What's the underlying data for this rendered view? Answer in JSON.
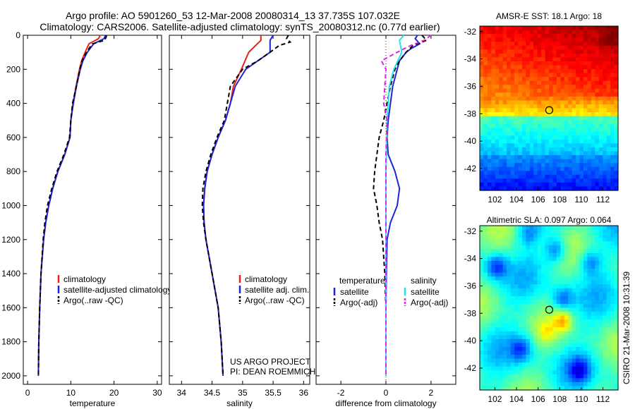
{
  "header": {
    "line1": "Argo profile: AO 5901260_53 12-Mar-2008 20080314_13 37.735S 107.032E",
    "line2": "Climatology: CARS2006. Satellite-adjusted climatology: synTS_20080312.nc (0.77d earlier)"
  },
  "colors": {
    "clim": "#e8231c",
    "sat": "#1f24d8",
    "argo": "#000000",
    "sat_sal": "#22e6e6",
    "argo_sal": "#e81ce8"
  },
  "chart_data": [
    {
      "type": "line",
      "name": "temperature",
      "xlabel": "temperature",
      "xlim": [
        -1,
        31
      ],
      "ylim": [
        0,
        2050
      ],
      "xticks": [
        "0",
        "10",
        "20",
        "30"
      ],
      "xtick_values": [
        0,
        10,
        20,
        30
      ],
      "yticks": [
        "0",
        "200",
        "400",
        "600",
        "800",
        "1000",
        "1200",
        "1400",
        "1600",
        "1800",
        "2000"
      ],
      "ytick_values": [
        0,
        200,
        400,
        600,
        800,
        1000,
        1200,
        1400,
        1600,
        1800,
        2000
      ],
      "legend": [
        "climatology",
        "satellite-adjusted climatology",
        "Argo(..raw -QC)"
      ],
      "series": [
        {
          "name": "climatology",
          "color": "clim",
          "dash": false,
          "depth": [
            0,
            20,
            50,
            100,
            150,
            200,
            300,
            400,
            500,
            600,
            700,
            800,
            900,
            1000,
            1100,
            1200,
            1400,
            1600,
            1800,
            2000
          ],
          "values": [
            16.8,
            16.4,
            14.2,
            13.3,
            12.5,
            12.0,
            11.2,
            10.5,
            10.0,
            9.8,
            8.6,
            7.0,
            5.8,
            4.9,
            4.2,
            3.7,
            3.1,
            2.8,
            2.6,
            2.5
          ]
        },
        {
          "name": "satellite-adjusted climatology",
          "color": "sat",
          "dash": false,
          "depth": [
            0,
            20,
            50,
            100,
            150,
            200,
            300,
            400,
            500,
            600,
            700,
            800,
            900,
            1000,
            1100,
            1200,
            1400,
            1600,
            1800,
            2000
          ],
          "values": [
            18.0,
            17.7,
            15.3,
            13.8,
            12.8,
            12.2,
            11.3,
            10.6,
            10.0,
            9.8,
            8.6,
            7.0,
            5.8,
            4.9,
            4.2,
            3.7,
            3.1,
            2.8,
            2.6,
            2.5
          ]
        },
        {
          "name": "Argo(..raw -QC)",
          "color": "argo",
          "dash": true,
          "depth": [
            0,
            10,
            30,
            50,
            100,
            150,
            200,
            300,
            400,
            500,
            600,
            700,
            800,
            900,
            1000,
            1100,
            1200,
            1400,
            1600,
            1800,
            2000
          ],
          "values": [
            18.2,
            18.2,
            17.8,
            15.0,
            13.6,
            12.6,
            12.1,
            11.3,
            10.4,
            10.0,
            9.7,
            8.4,
            6.8,
            5.6,
            4.6,
            4.0,
            3.6,
            3.1,
            2.8,
            2.6,
            2.5
          ]
        }
      ]
    },
    {
      "type": "line",
      "name": "salinity",
      "xlabel": "salinity",
      "xlim": [
        33.8,
        36.1
      ],
      "ylim": [
        0,
        2050
      ],
      "xticks": [
        "34",
        "34.5",
        "35",
        "35.5",
        "36"
      ],
      "xtick_values": [
        34,
        34.5,
        35,
        35.5,
        36
      ],
      "legend": [
        "climatology",
        "satellite adj. clim.",
        "Argo(..raw -QC)"
      ],
      "annotation": [
        "US ARGO PROJECT",
        "PI: DEAN ROEMMICH"
      ],
      "series": [
        {
          "name": "climatology",
          "color": "clim",
          "dash": false,
          "depth": [
            0,
            30,
            100,
            200,
            300,
            400,
            500,
            600,
            700,
            800,
            900,
            1000,
            1100,
            1200,
            1400,
            1600,
            1800,
            2000
          ],
          "values": [
            35.3,
            35.3,
            35.1,
            34.98,
            34.85,
            34.8,
            34.72,
            34.6,
            34.5,
            34.42,
            34.38,
            34.36,
            34.37,
            34.4,
            34.5,
            34.6,
            34.65,
            34.68
          ]
        },
        {
          "name": "satellite adj. clim.",
          "color": "sat",
          "dash": false,
          "depth": [
            0,
            30,
            100,
            150,
            200,
            300,
            400,
            500,
            600,
            700,
            800,
            900,
            1000,
            1100,
            1200,
            1400,
            1600,
            1800,
            2000
          ],
          "values": [
            35.5,
            35.45,
            35.45,
            35.25,
            35.05,
            34.88,
            34.8,
            34.72,
            34.6,
            34.5,
            34.42,
            34.38,
            34.36,
            34.37,
            34.4,
            34.5,
            34.6,
            34.65,
            34.68
          ]
        },
        {
          "name": "Argo(..raw -QC)",
          "color": "argo",
          "dash": true,
          "depth": [
            0,
            20,
            40,
            60,
            100,
            150,
            200,
            300,
            400,
            500,
            600,
            700,
            800,
            900,
            1000,
            1100,
            1200,
            1400,
            1600,
            1800,
            2000
          ],
          "values": [
            35.75,
            35.72,
            35.78,
            35.6,
            35.45,
            35.25,
            35.0,
            34.8,
            34.75,
            34.7,
            34.58,
            34.48,
            34.4,
            34.35,
            34.34,
            34.36,
            34.4,
            34.5,
            34.6,
            34.65,
            34.68
          ]
        }
      ]
    },
    {
      "type": "line",
      "name": "difference",
      "xlabel": "difference from climatology",
      "xlim": [
        -3.1,
        3.1
      ],
      "ylim": [
        0,
        2050
      ],
      "xticks": [
        "-2",
        "0",
        "2"
      ],
      "xtick_values": [
        -2,
        0,
        2
      ],
      "legend_titles": [
        "temperature",
        "salinity"
      ],
      "legend": [
        "satellite",
        "Argo(-adj)",
        "satellite",
        "Argo(-adj)"
      ],
      "series": [
        {
          "name": "temperature satellite",
          "color": "sat",
          "dash": false,
          "depth": [
            0,
            20,
            50,
            80,
            100,
            150,
            200,
            300,
            400,
            500,
            600,
            700,
            800,
            900,
            1000,
            1100,
            1200,
            1400,
            1600,
            1800,
            2000
          ],
          "values": [
            1.4,
            1.3,
            1.5,
            1.1,
            0.9,
            0.6,
            0.5,
            0.3,
            0.2,
            0.1,
            0.05,
            0.1,
            0.4,
            0.6,
            0.5,
            0.2,
            0.05,
            0.02,
            0.0,
            0.0,
            0.0
          ]
        },
        {
          "name": "temperature Argo(-adj)",
          "color": "argo",
          "dash": true,
          "depth": [
            0,
            30,
            60,
            100,
            150,
            200,
            300,
            400,
            500,
            600,
            700,
            800,
            900,
            1000,
            1100,
            1200,
            1400,
            1600,
            1800,
            2000
          ],
          "values": [
            1.6,
            1.8,
            1.2,
            0.9,
            0.6,
            0.4,
            0.2,
            0.05,
            -0.1,
            -0.3,
            -0.4,
            -0.5,
            -0.55,
            -0.4,
            -0.3,
            -0.15,
            -0.05,
            0.0,
            0.0,
            0.0
          ]
        },
        {
          "name": "salinity satellite",
          "color": "sat_sal",
          "dash": false,
          "depth": [
            0,
            30,
            100,
            200,
            300,
            500,
            800,
            1000,
            1200,
            1600,
            2000
          ],
          "values": [
            0.8,
            0.6,
            0.7,
            0.35,
            0.15,
            0.05,
            0.0,
            0.0,
            0.0,
            0.0,
            0.0
          ]
        },
        {
          "name": "salinity Argo(-adj)",
          "color": "argo_sal",
          "dash": true,
          "depth": [
            0,
            30,
            60,
            100,
            150,
            200,
            300,
            400,
            500,
            700,
            1000,
            1400,
            2000
          ],
          "values": [
            2.0,
            1.7,
            1.1,
            0.5,
            -0.2,
            0.0,
            -0.05,
            -0.1,
            0.05,
            0.0,
            0.0,
            0.0,
            0.0
          ]
        }
      ]
    },
    {
      "type": "heatmap",
      "name": "sst",
      "title": "AMSR-E SST: 18.1 Argo: 18",
      "xlim": [
        100.6,
        113.4
      ],
      "ylim": [
        -43.6,
        -31.6
      ],
      "xticks": [
        "102",
        "104",
        "106",
        "108",
        "110",
        "112"
      ],
      "xtick_values": [
        102,
        104,
        106,
        108,
        110,
        112
      ],
      "yticks": [
        "-32",
        "-34",
        "-36",
        "-38",
        "-40",
        "-42"
      ],
      "ytick_values": [
        -32,
        -34,
        -36,
        -38,
        -40,
        -42
      ],
      "marker": {
        "lon": 107.03,
        "lat": -37.74
      }
    },
    {
      "type": "heatmap",
      "name": "sla",
      "title": "Altimetric SLA: 0.097 Argo: 0.064",
      "xlim": [
        100.6,
        113.4
      ],
      "ylim": [
        -43.6,
        -31.6
      ],
      "xticks": [
        "102",
        "104",
        "106",
        "108",
        "110",
        "112"
      ],
      "xtick_values": [
        102,
        104,
        106,
        108,
        110,
        112
      ],
      "yticks": [
        "-32",
        "-34",
        "-36",
        "-38",
        "-40",
        "-42"
      ],
      "ytick_values": [
        -32,
        -34,
        -36,
        -38,
        -40,
        -42
      ],
      "marker": {
        "lon": 107.03,
        "lat": -37.74
      }
    }
  ],
  "side_caption": "CSIRO 21-Mar-2008 10:31:39"
}
